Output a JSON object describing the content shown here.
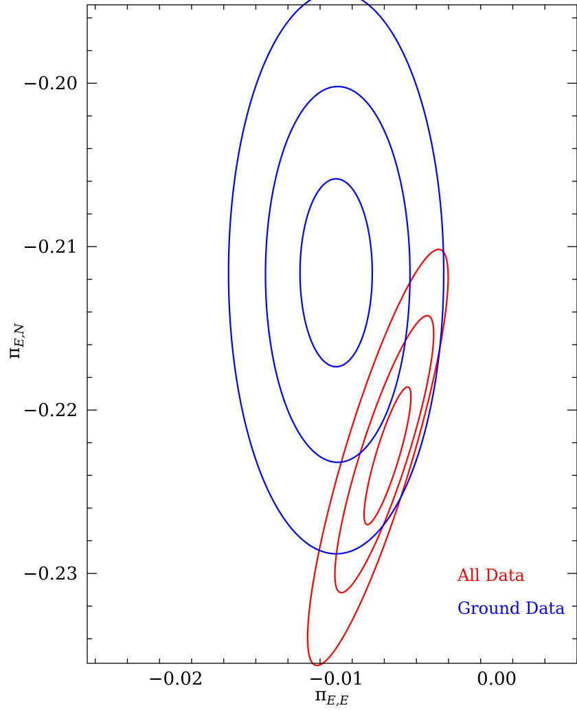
{
  "chart_data": {
    "type": "contour",
    "xlabel": {
      "symbol": "π",
      "subscript": "E,E"
    },
    "ylabel": {
      "symbol": "π",
      "subscript": "E,N"
    },
    "xlim": [
      -0.0255,
      0.005
    ],
    "ylim": [
      -0.2355,
      -0.1952
    ],
    "xticks": [
      {
        "value": -0.02,
        "label": "−0.02"
      },
      {
        "value": -0.01,
        "label": "−0.01"
      },
      {
        "value": 0.0,
        "label": "0.00"
      }
    ],
    "yticks": [
      {
        "value": -0.2,
        "label": "−0.20"
      },
      {
        "value": -0.21,
        "label": "−0.21"
      },
      {
        "value": -0.22,
        "label": "−0.22"
      },
      {
        "value": -0.23,
        "label": "−0.23"
      }
    ],
    "grid": false,
    "legend_placement": "bottom-right",
    "series": [
      {
        "name": "All Data",
        "color": "#ff0000",
        "contours": [
          {
            "center": [
              -0.0068,
              -0.2228
            ],
            "semi_major": 0.0044,
            "semi_minor": 0.00072,
            "major_axis_angle_deg": 73
          },
          {
            "center": [
              -0.007,
              -0.2227
            ],
            "semi_major": 0.0089,
            "semi_minor": 0.00145,
            "major_axis_angle_deg": 72
          },
          {
            "center": [
              -0.0074,
              -0.2229
            ],
            "semi_major": 0.0133,
            "semi_minor": 0.0021,
            "major_axis_angle_deg": 73
          }
        ]
      },
      {
        "name": "Ground Data",
        "color": "#0000ff",
        "contours": [
          {
            "center": [
              -0.01,
              -0.2116
            ],
            "semi_major": 0.00575,
            "semi_minor": 0.00225,
            "major_axis_angle_deg": 90
          },
          {
            "center": [
              -0.0099,
              -0.2117
            ],
            "semi_major": 0.0115,
            "semi_minor": 0.0045,
            "major_axis_angle_deg": 90
          },
          {
            "center": [
              -0.01,
              -0.2116
            ],
            "semi_major": 0.0172,
            "semi_minor": 0.0067,
            "major_axis_angle_deg": 90
          }
        ]
      }
    ]
  }
}
